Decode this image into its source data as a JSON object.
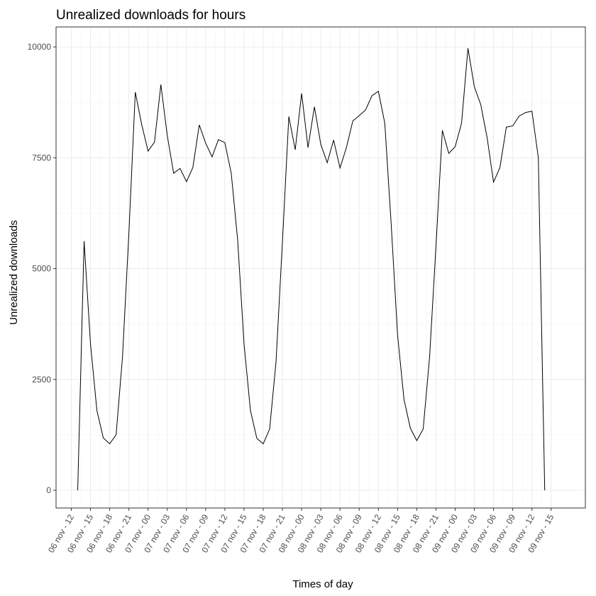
{
  "chart_data": {
    "type": "line",
    "title": "Unrealized downloads for hours",
    "xlabel": "Times of day",
    "ylabel": "Unrealized downloads",
    "ylim": [
      -400,
      10450
    ],
    "y_ticks": [
      0,
      2500,
      5000,
      7500,
      10000
    ],
    "x_tick_labels": [
      "06 nov - 12",
      "06 nov - 15",
      "06 nov - 18",
      "06 nov - 21",
      "07 nov - 00",
      "07 nov - 03",
      "07 nov - 06",
      "07 nov - 09",
      "07 nov - 12",
      "07 nov - 15",
      "07 nov - 18",
      "07 nov - 21",
      "08 nov - 00",
      "08 nov - 03",
      "08 nov - 06",
      "08 nov - 09",
      "08 nov - 12",
      "08 nov - 15",
      "08 nov - 18",
      "08 nov - 21",
      "09 nov - 00",
      "09 nov - 03",
      "09 nov - 06",
      "09 nov - 09",
      "09 nov - 12",
      "09 nov - 15"
    ],
    "x_start": "06 nov - 13",
    "x_step": "1 hour",
    "values": [
      0,
      5620,
      3300,
      1800,
      1180,
      1050,
      1250,
      3000,
      5800,
      8980,
      8250,
      7650,
      7850,
      9150,
      8000,
      7150,
      7260,
      6960,
      7280,
      8240,
      7830,
      7520,
      7910,
      7840,
      7150,
      5650,
      3300,
      1800,
      1170,
      1050,
      1380,
      2900,
      5600,
      8430,
      7680,
      8950,
      7730,
      8650,
      7800,
      7390,
      7900,
      7270,
      7730,
      8330,
      8450,
      8580,
      8900,
      9000,
      8280,
      6000,
      3500,
      2050,
      1400,
      1120,
      1380,
      3000,
      5500,
      8120,
      7600,
      7750,
      8280,
      9970,
      9100,
      8700,
      7950,
      6950,
      7280,
      8190,
      8220,
      8440,
      8520,
      8550,
      7500,
      0
    ],
    "grid": true,
    "legend": "none"
  }
}
